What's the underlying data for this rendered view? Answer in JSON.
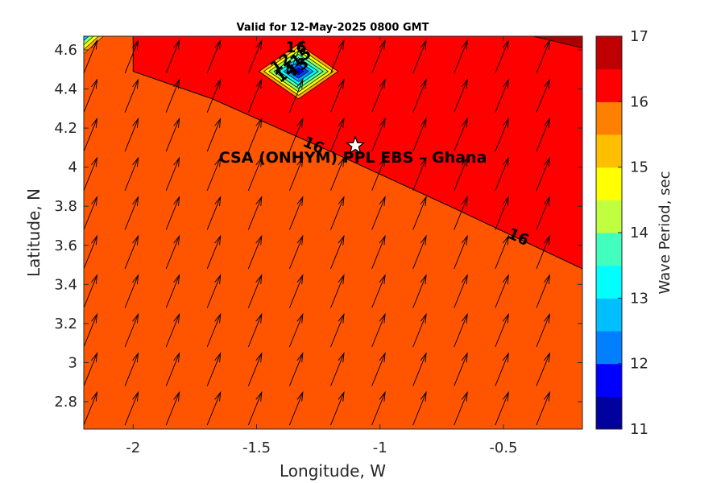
{
  "chart_data": {
    "type": "filled-contour",
    "title": "Valid for 12-May-2025 0800 GMT",
    "xlabel": "Longitude, W",
    "ylabel": "Latitude, N",
    "xlim": [
      -2.2,
      -0.18
    ],
    "ylim": [
      2.66,
      4.67
    ],
    "x_ticks": [
      -2,
      -1.5,
      -1,
      -0.5
    ],
    "x_tick_labels": [
      "-2",
      "-1.5",
      "-1",
      "-0.5"
    ],
    "y_ticks": [
      2.8,
      3.0,
      3.2,
      3.4,
      3.6,
      3.8,
      4.0,
      4.2,
      4.4,
      4.6
    ],
    "y_tick_labels": [
      "2.8",
      "3",
      "3.2",
      "3.4",
      "3.6",
      "3.8",
      "4",
      "4.2",
      "4.4",
      "4.6"
    ],
    "colorbar": {
      "label": "Wave Period, sec",
      "range": [
        11,
        17
      ],
      "ticks": [
        11,
        12,
        13,
        14,
        15,
        16,
        17
      ],
      "tick_labels": [
        "11",
        "12",
        "13",
        "14",
        "15",
        "16",
        "17"
      ],
      "levels": [
        11,
        11.5,
        12,
        12.5,
        13,
        13.5,
        14,
        14.5,
        15,
        15.5,
        16,
        16.5,
        17
      ],
      "colors": [
        "#00009f",
        "#0000ff",
        "#0040ff",
        "#0080ff",
        "#00bfff",
        "#00ffff",
        "#40ffbf",
        "#80ff80",
        "#bfff40",
        "#ffff00",
        "#ffbf00",
        "#ff8000",
        "#ff4000",
        "#ff0000",
        "#bf0000"
      ],
      "bands": [
        {
          "from": 11,
          "to": 11.5,
          "color": "#00009f"
        },
        {
          "from": 11.5,
          "to": 12,
          "color": "#0000ff"
        },
        {
          "from": 12,
          "to": 12.5,
          "color": "#0040ff"
        },
        {
          "from": 12.5,
          "to": 13,
          "color": "#00a0ff"
        },
        {
          "from": 13,
          "to": 13.5,
          "color": "#00ffff"
        },
        {
          "from": 13.5,
          "to": 14,
          "color": "#50ffb0"
        },
        {
          "from": 14,
          "to": 14.5,
          "color": "#a0ff50"
        },
        {
          "from": 14.5,
          "to": 15,
          "color": "#ffff00"
        },
        {
          "from": 15,
          "to": 15.5,
          "color": "#ffaa00"
        },
        {
          "from": 15.5,
          "to": 16,
          "color": "#ff5500"
        },
        {
          "from": 16,
          "to": 16.5,
          "color": "#ff0000"
        },
        {
          "from": 16.5,
          "to": 17,
          "color": "#aa0000"
        }
      ]
    },
    "regions": {
      "background_color": "#ff5500",
      "background_value_range": [
        15.5,
        16
      ],
      "upper_region_color": "#ff0000",
      "upper_region_value_range": [
        16,
        16.5
      ],
      "boundary_16": [
        [
          -2.0,
          4.67
        ],
        [
          -2.0,
          4.49
        ],
        [
          -1.68,
          4.35
        ],
        [
          -1.2,
          4.08
        ],
        [
          -0.7,
          3.79
        ],
        [
          -0.18,
          3.48
        ]
      ],
      "corner_top_right": {
        "polygon": [
          [
            -0.38,
            4.67
          ],
          [
            -0.18,
            4.67
          ],
          [
            -0.18,
            4.61
          ]
        ],
        "color": "#aa0000"
      },
      "corner_top_left": {
        "polygon": [
          [
            -2.2,
            4.67
          ],
          [
            -2.12,
            4.67
          ],
          [
            -2.2,
            4.58
          ]
        ],
        "colors": [
          "#00c0ff",
          "#80ff80",
          "#ffff00",
          "#ffaa00"
        ]
      }
    },
    "local_minimum": {
      "center": [
        -1.33,
        4.49
      ],
      "half_width_lon": 0.16,
      "half_height_lat": 0.14,
      "min_value": 11.5,
      "colors_outer_to_inner": [
        "#ffaa00",
        "#ffff00",
        "#a0ff50",
        "#50ffb0",
        "#00ffff",
        "#00a0ff",
        "#0040ff",
        "#0000ff"
      ]
    },
    "contour_labels": [
      {
        "text": "16",
        "lon": -1.27,
        "lat": 4.11,
        "rotation": 24
      },
      {
        "text": "16",
        "lon": -0.44,
        "lat": 3.64,
        "rotation": 24
      },
      {
        "text": "16",
        "lon": -1.34,
        "lat": 4.61,
        "rotation": 0
      },
      {
        "text": "12",
        "lon": -1.4,
        "lat": 4.53,
        "rotation": -35
      },
      {
        "text": "15",
        "lon": -1.32,
        "lat": 4.56,
        "rotation": -35
      },
      {
        "text": "14",
        "lon": -1.38,
        "lat": 4.48,
        "rotation": -35
      },
      {
        "text": "13",
        "lon": -1.33,
        "lat": 4.51,
        "rotation": -35
      }
    ],
    "vector_field": {
      "quantity": "wave direction",
      "lon_start": -2.2,
      "lon_step": 0.1667,
      "lat_start": 2.68,
      "lat_step": 0.2,
      "cols": 12,
      "rows": 10,
      "direction_deg_from_north": 22
    },
    "station": {
      "lon": -1.1,
      "lat": 4.11,
      "marker": "star",
      "label": "CSA (ONHYM) PPL EBS  – Ghana"
    }
  }
}
